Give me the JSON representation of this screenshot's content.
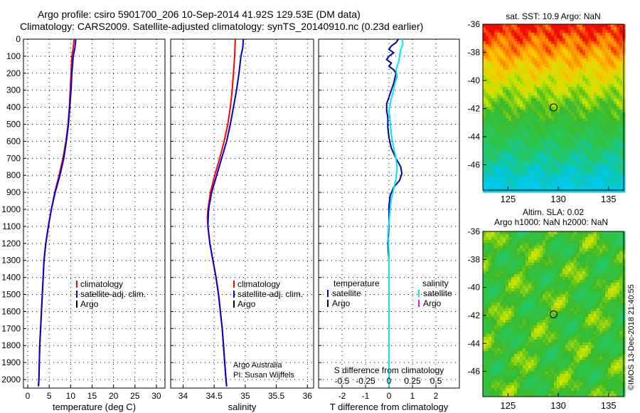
{
  "header": {
    "title_line1": "Argo profile: csiro 5901700_206 10-Sep-2014 41.92S 129.53E (DM data)",
    "title_line2": "Climatology: CARS2009. Satellite-adjusted climatology: synTS_20140910.nc (0.23d earlier)"
  },
  "depth_axis": {
    "ticks": [
      0,
      100,
      200,
      300,
      400,
      500,
      600,
      700,
      800,
      900,
      1000,
      1100,
      1200,
      1300,
      1400,
      1500,
      1600,
      1700,
      1800,
      1900,
      2000
    ],
    "range": [
      0,
      2050
    ]
  },
  "chart_data": [
    {
      "type": "line",
      "xlabel": "temperature (deg C)",
      "xlim": [
        -1,
        32
      ],
      "xticks": [
        0,
        5,
        10,
        15,
        20,
        25,
        30
      ],
      "legend": [
        "climatology",
        "satellite-adj. clim.",
        "Argo"
      ],
      "series": [
        {
          "name": "climatology",
          "color": "#ff0000",
          "points": [
            [
              10.8,
              0
            ],
            [
              10.6,
              50
            ],
            [
              10.3,
              100
            ],
            [
              10.1,
              200
            ],
            [
              9.9,
              300
            ],
            [
              9.7,
              400
            ],
            [
              9.4,
              500
            ],
            [
              8.9,
              600
            ],
            [
              8.2,
              700
            ],
            [
              7.3,
              800
            ],
            [
              6.3,
              900
            ],
            [
              5.5,
              1000
            ],
            [
              4.8,
              1100
            ],
            [
              4.2,
              1200
            ],
            [
              3.8,
              1300
            ],
            [
              3.6,
              1400
            ],
            [
              3.4,
              1500
            ],
            [
              3.2,
              1600
            ],
            [
              3.0,
              1700
            ],
            [
              2.8,
              1800
            ],
            [
              2.7,
              1900
            ],
            [
              2.6,
              2000
            ],
            [
              2.5,
              2040
            ]
          ]
        },
        {
          "name": "satellite-adj. clim.",
          "color": "#0000cc",
          "points": [
            [
              11.2,
              0
            ],
            [
              11.0,
              50
            ],
            [
              10.6,
              100
            ],
            [
              10.3,
              200
            ],
            [
              10.1,
              300
            ],
            [
              9.8,
              400
            ],
            [
              9.5,
              500
            ],
            [
              9.0,
              600
            ],
            [
              8.4,
              700
            ],
            [
              7.5,
              800
            ],
            [
              6.4,
              900
            ],
            [
              5.5,
              1000
            ],
            [
              4.8,
              1100
            ],
            [
              4.2,
              1200
            ],
            [
              3.8,
              1300
            ],
            [
              3.6,
              1400
            ],
            [
              3.4,
              1500
            ],
            [
              3.2,
              1600
            ],
            [
              3.0,
              1700
            ],
            [
              2.8,
              1800
            ],
            [
              2.7,
              1900
            ],
            [
              2.6,
              2000
            ],
            [
              2.5,
              2040
            ]
          ]
        }
      ]
    },
    {
      "type": "line",
      "xlabel": "salinity",
      "xlim": [
        33.8,
        36.1
      ],
      "xticks": [
        34,
        34.5,
        35,
        35.5,
        36
      ],
      "legend": [
        "climatology",
        "satellite-adj. clim.",
        "Argo"
      ],
      "series": [
        {
          "name": "climatology",
          "color": "#ff0000",
          "points": [
            [
              34.84,
              0
            ],
            [
              34.83,
              100
            ],
            [
              34.81,
              200
            ],
            [
              34.79,
              300
            ],
            [
              34.76,
              400
            ],
            [
              34.72,
              500
            ],
            [
              34.66,
              600
            ],
            [
              34.59,
              700
            ],
            [
              34.51,
              800
            ],
            [
              34.44,
              900
            ],
            [
              34.4,
              1000
            ],
            [
              34.39,
              1050
            ],
            [
              34.4,
              1100
            ],
            [
              34.43,
              1200
            ],
            [
              34.48,
              1300
            ],
            [
              34.53,
              1400
            ],
            [
              34.57,
              1500
            ],
            [
              34.6,
              1600
            ],
            [
              34.63,
              1700
            ],
            [
              34.65,
              1800
            ],
            [
              34.67,
              1900
            ],
            [
              34.69,
              2000
            ],
            [
              34.7,
              2040
            ]
          ]
        },
        {
          "name": "satellite-adj. clim.",
          "color": "#0000cc",
          "points": [
            [
              34.97,
              0
            ],
            [
              34.96,
              50
            ],
            [
              34.93,
              100
            ],
            [
              34.9,
              200
            ],
            [
              34.86,
              300
            ],
            [
              34.81,
              400
            ],
            [
              34.76,
              500
            ],
            [
              34.7,
              600
            ],
            [
              34.62,
              700
            ],
            [
              34.54,
              800
            ],
            [
              34.46,
              900
            ],
            [
              34.41,
              1000
            ],
            [
              34.4,
              1100
            ],
            [
              34.43,
              1200
            ],
            [
              34.48,
              1300
            ],
            [
              34.53,
              1400
            ],
            [
              34.57,
              1500
            ],
            [
              34.6,
              1600
            ],
            [
              34.63,
              1700
            ],
            [
              34.65,
              1800
            ],
            [
              34.67,
              1900
            ],
            [
              34.69,
              2000
            ],
            [
              34.7,
              2040
            ]
          ]
        }
      ]
    },
    {
      "type": "line",
      "xlabel": "T difference from climatology",
      "secondary_label": "S difference from climatology",
      "xlim": [
        -3,
        3
      ],
      "xticks": [
        -2,
        -1,
        0,
        1,
        2
      ],
      "secondary_ticks": [
        "-0.5",
        "-0.25",
        "0",
        "0.25",
        "0.5"
      ],
      "secondary_tick_values": [
        -2,
        -1,
        0,
        1,
        2
      ],
      "legend_temperature_title": "temperature",
      "legend_salinity_title": "salinity",
      "legend_temperature": [
        "satellite",
        "Argo"
      ],
      "legend_salinity": [
        "satellite",
        "Argo"
      ],
      "series": [
        {
          "name": "satellite",
          "color": "#0000aa",
          "points": [
            [
              0.4,
              0
            ],
            [
              0.3,
              20
            ],
            [
              0.1,
              40
            ],
            [
              0.0,
              60
            ],
            [
              0.2,
              80
            ],
            [
              0.0,
              100
            ],
            [
              -0.1,
              120
            ],
            [
              0.1,
              140
            ],
            [
              0.0,
              160
            ],
            [
              0.2,
              180
            ],
            [
              0.3,
              200
            ],
            [
              0.2,
              260
            ],
            [
              0.1,
              300
            ],
            [
              0.0,
              340
            ],
            [
              -0.1,
              380
            ],
            [
              -0.1,
              420
            ],
            [
              -0.05,
              460
            ],
            [
              -0.05,
              520
            ],
            [
              0.0,
              580
            ],
            [
              0.1,
              640
            ],
            [
              0.3,
              700
            ],
            [
              0.5,
              750
            ],
            [
              0.55,
              790
            ],
            [
              0.45,
              830
            ],
            [
              0.2,
              870
            ],
            [
              0.05,
              920
            ],
            [
              0.0,
              980
            ],
            [
              0.0,
              1100
            ],
            [
              -0.05,
              1200
            ],
            [
              0.0,
              1300
            ],
            [
              0.0,
              1400
            ],
            [
              0.0,
              1600
            ],
            [
              0.0,
              1800
            ],
            [
              0.0,
              2040
            ]
          ]
        },
        {
          "name": "salinity satellite",
          "color": "#00e5ee",
          "points": [
            [
              0.55,
              0
            ],
            [
              0.6,
              30
            ],
            [
              0.5,
              60
            ],
            [
              0.45,
              100
            ],
            [
              0.4,
              140
            ],
            [
              0.3,
              180
            ],
            [
              0.35,
              220
            ],
            [
              0.25,
              260
            ],
            [
              0.2,
              300
            ],
            [
              0.1,
              350
            ],
            [
              0.0,
              420
            ],
            [
              0.05,
              480
            ],
            [
              0.1,
              560
            ],
            [
              0.2,
              640
            ],
            [
              0.3,
              700
            ],
            [
              0.35,
              760
            ],
            [
              0.3,
              820
            ],
            [
              0.2,
              880
            ],
            [
              0.1,
              940
            ],
            [
              0.05,
              1000
            ],
            [
              0.0,
              1080
            ],
            [
              -0.05,
              1150
            ],
            [
              0.0,
              1250
            ],
            [
              0.0,
              1400
            ],
            [
              0.0,
              1600
            ],
            [
              0.0,
              1800
            ],
            [
              0.0,
              2040
            ]
          ]
        }
      ]
    },
    {
      "type": "heatmap",
      "title": "sat. SST: 10.9 Argo: NaN",
      "xticks": [
        125,
        130,
        135
      ],
      "yticks": [
        -36,
        -38,
        -40,
        -42,
        -44,
        -46
      ],
      "xlim": [
        122.5,
        136.5
      ],
      "ylim": [
        -47.8,
        -36
      ],
      "marker": [
        129.53,
        -41.92
      ]
    },
    {
      "type": "heatmap",
      "title_line1": "Altim. SLA: 0.02",
      "title_line2": "Argo h1000: NaN h2000: NaN",
      "xticks": [
        125,
        130,
        135
      ],
      "yticks": [
        -36,
        -38,
        -40,
        -42,
        -44,
        -46
      ],
      "xlim": [
        122.5,
        136.5
      ],
      "ylim": [
        -47.8,
        -36
      ],
      "marker": [
        129.53,
        -41.92
      ]
    }
  ],
  "credits": {
    "line1": "Argo Australia",
    "line2": "PI: Susan Wijffels",
    "stamp": "©IMOS 13-Dec-2018 21:40:55"
  },
  "colors": {
    "climatology": "#ff0000",
    "satellite": "#0000cc",
    "argo": "#000000",
    "salinity_satellite": "#00e5ee",
    "salinity_argo": "#ff00ff"
  }
}
